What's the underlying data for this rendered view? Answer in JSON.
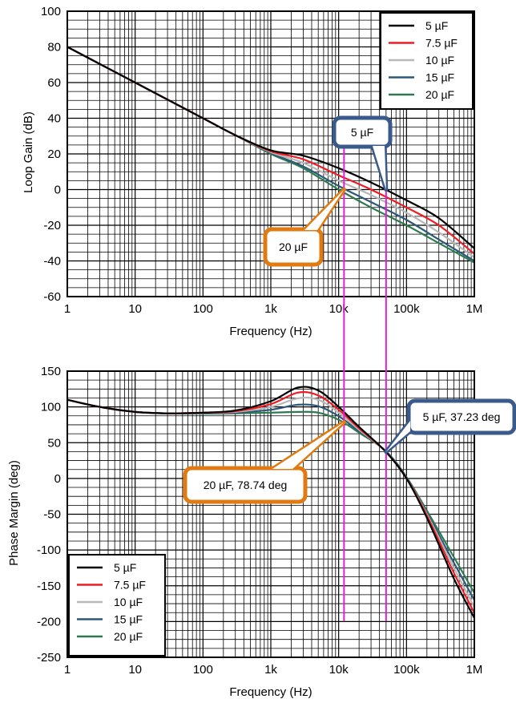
{
  "colors": {
    "5 µF": "#000000",
    "7.5 µF": "#ee1c24",
    "10 µF": "#b8b8b8",
    "15 µF": "#2e5878",
    "20 µF": "#2e7a50",
    "callout_blue": "#3a5a8c",
    "callout_orange": "#e07a12",
    "marker": "#e020d0"
  },
  "chart_data": [
    {
      "type": "line",
      "title": "",
      "xlabel": "Frequency (Hz)",
      "ylabel": "Loop Gain (dB)",
      "xscale": "log",
      "xlim": [
        1,
        1000000
      ],
      "ylim": [
        -60,
        100
      ],
      "xticks": [
        1,
        10,
        100,
        1000,
        10000,
        100000,
        1000000
      ],
      "xticklabels": [
        "1",
        "10",
        "100",
        "1k",
        "10k",
        "100k",
        "1M"
      ],
      "yticks": [
        -60,
        -40,
        -20,
        0,
        20,
        40,
        60,
        80,
        100
      ],
      "grid": true,
      "legend_position": "top-right",
      "x": [
        1,
        10,
        100,
        300,
        1000,
        3000,
        10000,
        30000,
        100000,
        300000,
        1000000
      ],
      "series": [
        {
          "name": "5 µF",
          "values": [
            80,
            60,
            40,
            30.5,
            22,
            19,
            12,
            4,
            -6,
            -16,
            -33
          ]
        },
        {
          "name": "7.5 µF",
          "values": [
            80,
            60,
            40,
            30.5,
            21.5,
            17,
            8,
            0,
            -10,
            -20,
            -36
          ]
        },
        {
          "name": "10 µF",
          "values": [
            80,
            60,
            40,
            30.5,
            21,
            15,
            5,
            -3,
            -13,
            -24,
            -38
          ]
        },
        {
          "name": "15 µF",
          "values": [
            80,
            60,
            40,
            30.5,
            20.5,
            13,
            2,
            -7,
            -17,
            -28,
            -40
          ]
        },
        {
          "name": "20 µF",
          "values": [
            80,
            60,
            40,
            30.5,
            20,
            12,
            0,
            -10,
            -20,
            -30,
            -41
          ]
        }
      ],
      "markers": [
        12000,
        50000
      ],
      "annotations": [
        {
          "text": "5 µF",
          "x": 50000,
          "y": 0,
          "color": "callout_blue"
        },
        {
          "text": "20 µF",
          "x": 12000,
          "y": 0,
          "color": "callout_orange"
        }
      ]
    },
    {
      "type": "line",
      "title": "",
      "xlabel": "Frequency (Hz)",
      "ylabel": "Phase Margin (deg)",
      "xscale": "log",
      "xlim": [
        1,
        1000000
      ],
      "ylim": [
        -250,
        150
      ],
      "xticks": [
        1,
        10,
        100,
        1000,
        10000,
        100000,
        1000000
      ],
      "xticklabels": [
        "1",
        "10",
        "100",
        "1k",
        "10k",
        "100k",
        "1M"
      ],
      "yticks": [
        -250,
        -200,
        -150,
        -100,
        -50,
        0,
        50,
        100,
        150
      ],
      "grid": true,
      "legend_position": "bottom-left",
      "x": [
        1,
        3,
        10,
        30,
        100,
        300,
        1000,
        2500,
        5000,
        10000,
        20000,
        50000,
        100000,
        200000,
        500000,
        1000000
      ],
      "series": [
        {
          "name": "5 µF",
          "values": [
            110,
            100,
            93,
            91,
            92,
            95,
            108,
            127,
            123,
            100,
            72,
            37,
            0,
            -55,
            -140,
            -195
          ]
        },
        {
          "name": "7.5 µF",
          "values": [
            110,
            100,
            93,
            91,
            92,
            94,
            104,
            120,
            116,
            96,
            70,
            37,
            0,
            -52,
            -132,
            -188
          ]
        },
        {
          "name": "10 µF",
          "values": [
            110,
            100,
            93,
            91,
            91.5,
            93,
            100,
            112,
            110,
            92,
            68,
            37,
            0,
            -50,
            -125,
            -180
          ]
        },
        {
          "name": "15 µF",
          "values": [
            110,
            100,
            93,
            91,
            91,
            92,
            96,
            103,
            101,
            87,
            66,
            38,
            1,
            -48,
            -118,
            -170
          ]
        },
        {
          "name": "20 µF",
          "values": [
            110,
            100,
            93,
            91,
            90.5,
            91,
            92,
            93,
            92,
            82,
            64,
            38,
            2,
            -45,
            -110,
            -160
          ]
        }
      ],
      "markers": [
        12000,
        50000
      ],
      "annotations": [
        {
          "text": "5 µF, 37.23 deg",
          "x": 50000,
          "y": 37.23,
          "color": "callout_blue"
        },
        {
          "text": "20 µF, 78.74 deg",
          "x": 12000,
          "y": 78.74,
          "color": "callout_orange"
        }
      ]
    }
  ]
}
